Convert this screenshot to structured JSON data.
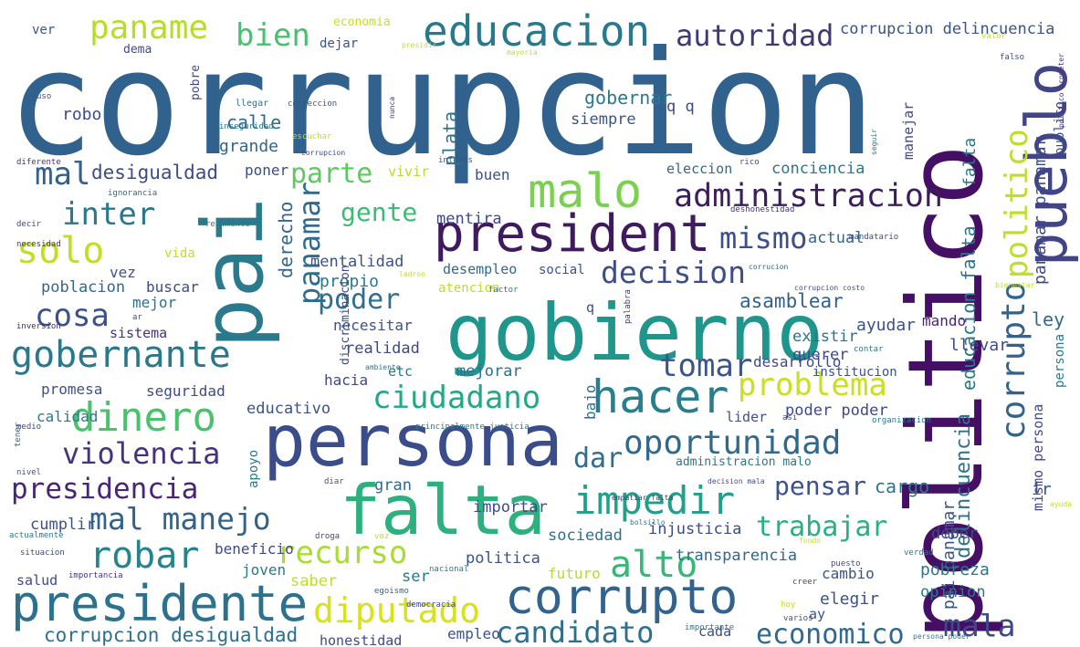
{
  "words": [
    {
      "text": "corrupcion",
      "color": "#31618d"
    },
    {
      "text": "politico",
      "color": "#440f64"
    },
    {
      "text": "gobierno",
      "color": "#1f958b"
    },
    {
      "text": "persona",
      "color": "#3b4c8a"
    },
    {
      "text": "president",
      "color": "#3f1a5f"
    },
    {
      "text": "falta",
      "color": "#2cb17e"
    },
    {
      "text": "pai",
      "color": "#2a7a8e"
    },
    {
      "text": "corrupto",
      "color": "#33638d"
    },
    {
      "text": "presidente",
      "color": "#2c718e"
    },
    {
      "text": "malo",
      "color": "#7ad151"
    },
    {
      "text": "hacer",
      "color": "#277f8e"
    },
    {
      "text": "pueblo",
      "color": "#414487"
    },
    {
      "text": "educacion",
      "color": "#29798e"
    },
    {
      "text": "autoridad",
      "color": "#3e3a75"
    },
    {
      "text": "paname",
      "color": "#b5de2b"
    },
    {
      "text": "bien",
      "color": "#48c16e"
    },
    {
      "text": "administracion",
      "color": "#3c1f5a"
    },
    {
      "text": "mismo",
      "color": "#3c4f8a"
    },
    {
      "text": "panamar",
      "color": "#2f6b8e"
    },
    {
      "text": "parte",
      "color": "#5ec962"
    },
    {
      "text": "gente",
      "color": "#3dbc74"
    },
    {
      "text": "mal",
      "color": "#34608d"
    },
    {
      "text": "desigualdad",
      "color": "#3e4c8a"
    },
    {
      "text": "inter",
      "color": "#2a788e"
    },
    {
      "text": "solo",
      "color": "#c2df23"
    },
    {
      "text": "cosa",
      "color": "#3b528b"
    },
    {
      "text": "gobernante",
      "color": "#2a788e"
    },
    {
      "text": "poder",
      "color": "#2e6e8e"
    },
    {
      "text": "decision",
      "color": "#3d4e8a"
    },
    {
      "text": "asamblear",
      "color": "#355f8d"
    },
    {
      "text": "tomar",
      "color": "#39568c"
    },
    {
      "text": "problema",
      "color": "#c8e020"
    },
    {
      "text": "ciudadano",
      "color": "#22a884"
    },
    {
      "text": "dinero",
      "color": "#4ac16d"
    },
    {
      "text": "violencia",
      "color": "#46327e"
    },
    {
      "text": "presidencia",
      "color": "#482677"
    },
    {
      "text": "mal manejo",
      "color": "#33638d"
    },
    {
      "text": "robar",
      "color": "#25838e"
    },
    {
      "text": "oportunidad",
      "color": "#31688e"
    },
    {
      "text": "dar",
      "color": "#2f6c8e"
    },
    {
      "text": "pensar",
      "color": "#3b528b"
    },
    {
      "text": "impedir",
      "color": "#1fa088"
    },
    {
      "text": "trabajar",
      "color": "#2ab07f"
    },
    {
      "text": "alto",
      "color": "#36b878"
    },
    {
      "text": "recurso",
      "color": "#a8db34"
    },
    {
      "text": "diputado",
      "color": "#d8e219"
    },
    {
      "text": "candidato",
      "color": "#2d708e"
    },
    {
      "text": "economico",
      "color": "#31688e"
    },
    {
      "text": "mala",
      "color": "#3e4989"
    },
    {
      "text": "corrupcion desigualdad",
      "color": "#2d708e"
    },
    {
      "text": "corrupto",
      "color": "#33638d"
    },
    {
      "text": "politico",
      "color": "#bddf26"
    },
    {
      "text": "educacion falta",
      "color": "#29798e"
    },
    {
      "text": "falta",
      "color": "#2a788e"
    },
    {
      "text": "panamar panamar",
      "color": "#3e4a89"
    },
    {
      "text": "delincuencia",
      "color": "#2c718e"
    },
    {
      "text": "pai panamar",
      "color": "#3b528b"
    },
    {
      "text": "mismo persona",
      "color": "#3e4a89"
    },
    {
      "text": "publico",
      "color": "#3b528b"
    },
    {
      "text": "ley",
      "color": "#31688e"
    },
    {
      "text": "ir",
      "color": "#3b528b"
    },
    {
      "text": "deber",
      "color": "#3e4a89"
    },
    {
      "text": "opinion",
      "color": "#29798e"
    },
    {
      "text": "pobreza",
      "color": "#2a788e"
    },
    {
      "text": "elegir",
      "color": "#3b528b"
    },
    {
      "text": "ay",
      "color": "#3b528b"
    },
    {
      "text": "cargo",
      "color": "#2a788e"
    },
    {
      "text": "llevar",
      "color": "#3e4a89"
    },
    {
      "text": "ayudar",
      "color": "#3b528b"
    },
    {
      "text": "existir",
      "color": "#2c718e"
    },
    {
      "text": "querer",
      "color": "#3e4a89"
    },
    {
      "text": "institucion",
      "color": "#3b528b"
    },
    {
      "text": "mando",
      "color": "#482677"
    },
    {
      "text": "actual",
      "color": "#31688e"
    },
    {
      "text": "eleccion",
      "color": "#31688e"
    },
    {
      "text": "conciencia",
      "color": "#2a788e"
    },
    {
      "text": "manejar",
      "color": "#3e4a89"
    },
    {
      "text": "calle",
      "color": "#31688e"
    },
    {
      "text": "grande",
      "color": "#33638d"
    },
    {
      "text": "robo",
      "color": "#3e4a89"
    },
    {
      "text": "gobernar",
      "color": "#2a788e"
    },
    {
      "text": "siempre",
      "color": "#3b528b"
    },
    {
      "text": "plata",
      "color": "#2c718e"
    },
    {
      "text": "q q",
      "color": "#3e4a89"
    },
    {
      "text": "buen",
      "color": "#3b528b"
    },
    {
      "text": "vivir",
      "color": "#b5de2b"
    },
    {
      "text": "poner",
      "color": "#3e4a89"
    },
    {
      "text": "derecho",
      "color": "#31688e"
    },
    {
      "text": "mentira",
      "color": "#3e4a89"
    },
    {
      "text": "mentalidad",
      "color": "#3b528b"
    },
    {
      "text": "propio",
      "color": "#2a788e"
    },
    {
      "text": "desempleo",
      "color": "#31688e"
    },
    {
      "text": "social",
      "color": "#3b528b"
    },
    {
      "text": "atencion",
      "color": "#bddf26"
    },
    {
      "text": "q",
      "color": "#3e4a89"
    },
    {
      "text": "discriminacion",
      "color": "#3e4a89"
    },
    {
      "text": "necesitar",
      "color": "#3b528b"
    },
    {
      "text": "realidad",
      "color": "#3e4a89"
    },
    {
      "text": "mejorar",
      "color": "#2c718e"
    },
    {
      "text": "etc",
      "color": "#2a788e"
    },
    {
      "text": "hacia",
      "color": "#3e4a89"
    },
    {
      "text": "bajo",
      "color": "#2c718e"
    },
    {
      "text": "educativo",
      "color": "#3b528b"
    },
    {
      "text": "apoyo",
      "color": "#2a788e"
    },
    {
      "text": "gran",
      "color": "#31688e"
    },
    {
      "text": "importar",
      "color": "#3e4a89"
    },
    {
      "text": "cumplir",
      "color": "#3b528b"
    },
    {
      "text": "beneficio",
      "color": "#3e4a89"
    },
    {
      "text": "joven",
      "color": "#2a788e"
    },
    {
      "text": "saber",
      "color": "#bddf26"
    },
    {
      "text": "ser",
      "color": "#2a788e"
    },
    {
      "text": "politica",
      "color": "#3b528b"
    },
    {
      "text": "futuro",
      "color": "#b5de2b"
    },
    {
      "text": "sociedad",
      "color": "#2c718e"
    },
    {
      "text": "injusticia",
      "color": "#3e4a89"
    },
    {
      "text": "transparencia",
      "color": "#31688e"
    },
    {
      "text": "cambio",
      "color": "#3b528b"
    },
    {
      "text": "salud",
      "color": "#3e4a89"
    },
    {
      "text": "honestidad",
      "color": "#3e4a89"
    },
    {
      "text": "empleo",
      "color": "#3b528b"
    },
    {
      "text": "cada",
      "color": "#3e4a89"
    },
    {
      "text": "lider",
      "color": "#3b528b"
    },
    {
      "text": "poder poder",
      "color": "#3e4a89"
    },
    {
      "text": "administracion malo",
      "color": "#2a788e"
    },
    {
      "text": "desarrollo",
      "color": "#3e4a89"
    },
    {
      "text": "mejor",
      "color": "#2c718e"
    },
    {
      "text": "sistema",
      "color": "#46327e"
    },
    {
      "text": "vez",
      "color": "#3b528b"
    },
    {
      "text": "vida",
      "color": "#c2df23"
    },
    {
      "text": "poblacion",
      "color": "#31688e"
    },
    {
      "text": "buscar",
      "color": "#3e4a89"
    },
    {
      "text": "promesa",
      "color": "#3b528b"
    },
    {
      "text": "seguridad",
      "color": "#3e4a89"
    },
    {
      "text": "calidad",
      "color": "#2a788e"
    },
    {
      "text": "ver",
      "color": "#3b528b"
    },
    {
      "text": "economia",
      "color": "#c8e020"
    },
    {
      "text": "dema",
      "color": "#3e4a89"
    },
    {
      "text": "dejar",
      "color": "#3b528b"
    },
    {
      "text": "pobre",
      "color": "#3e4a89"
    },
    {
      "text": "corrupcion delincuencia",
      "color": "#3b528b"
    },
    {
      "text": "llegar",
      "color": "#2c718e"
    },
    {
      "text": "correccion",
      "color": "#3b528b"
    },
    {
      "text": "inseguridad",
      "color": "#2a788e"
    },
    {
      "text": "nunca",
      "color": "#46327e"
    },
    {
      "text": "escuchar",
      "color": "#c2df23"
    },
    {
      "text": "corrupcion",
      "color": "#3e4a89"
    },
    {
      "text": "interes",
      "color": "#3b528b"
    },
    {
      "text": "diferente",
      "color": "#46327e"
    },
    {
      "text": "uso",
      "color": "#3b528b"
    },
    {
      "text": "ignorancia",
      "color": "#31688e"
    },
    {
      "text": "decir",
      "color": "#3e4a89"
    },
    {
      "text": "necesidad",
      "color": "#46327e"
    },
    {
      "text": "realmente",
      "color": "#2a788e"
    },
    {
      "text": "inversion",
      "color": "#482677"
    },
    {
      "text": "ar",
      "color": "#3b528b"
    },
    {
      "text": "ladron",
      "color": "#c2df23"
    },
    {
      "text": "factor",
      "color": "#2a788e"
    },
    {
      "text": "tener",
      "color": "#31688e"
    },
    {
      "text": "medio",
      "color": "#3e4a89"
    },
    {
      "text": "nivel",
      "color": "#3b528b"
    },
    {
      "text": "principalmente justicia",
      "color": "#2a788e"
    },
    {
      "text": "droga",
      "color": "#3e4a89"
    },
    {
      "text": "voz",
      "color": "#c2df23"
    },
    {
      "text": "egoismo",
      "color": "#31688e"
    },
    {
      "text": "democracia",
      "color": "#3e4a89"
    },
    {
      "text": "nacional",
      "color": "#2a788e"
    },
    {
      "text": "hoy",
      "color": "#c2df23"
    },
    {
      "text": "varios",
      "color": "#3b528b"
    },
    {
      "text": "importante",
      "color": "#2a788e"
    },
    {
      "text": "creer",
      "color": "#3e4a89"
    },
    {
      "text": "verdad",
      "color": "#2a788e"
    },
    {
      "text": "puesto",
      "color": "#3e4a89"
    },
    {
      "text": "fondo",
      "color": "#c2df23"
    },
    {
      "text": "actualmente",
      "color": "#2a788e"
    },
    {
      "text": "situacion",
      "color": "#3e4a89"
    },
    {
      "text": "importancia",
      "color": "#46327e"
    },
    {
      "text": "diar",
      "color": "#3b528b"
    },
    {
      "text": "empatiar falta",
      "color": "#46327e"
    },
    {
      "text": "decision mala",
      "color": "#3e4a89"
    },
    {
      "text": "bolsillo",
      "color": "#2a788e"
    },
    {
      "text": "deshonestidad",
      "color": "#46327e"
    },
    {
      "text": "mandatario",
      "color": "#3e4a89"
    },
    {
      "text": "rico",
      "color": "#3b528b"
    },
    {
      "text": "seguir",
      "color": "#2a788e"
    },
    {
      "text": "valor",
      "color": "#c2df23"
    },
    {
      "text": "falso",
      "color": "#3e4a89"
    },
    {
      "text": "mayoria",
      "color": "#c2df23"
    },
    {
      "text": "presidir",
      "color": "#c2df23"
    },
    {
      "text": "contar",
      "color": "#2a788e"
    },
    {
      "text": "palabra",
      "color": "#46327e"
    },
    {
      "text": "corrupcion costo",
      "color": "#3b528b"
    },
    {
      "text": "corrucion",
      "color": "#31688e"
    },
    {
      "text": "ambiente",
      "color": "#2a788e"
    },
    {
      "text": "politico prometer",
      "color": "#46327e"
    },
    {
      "text": "persona",
      "color": "#2a788e"
    },
    {
      "text": "organizacion",
      "color": "#2a788e"
    },
    {
      "text": "asi",
      "color": "#3e4a89"
    },
    {
      "text": "ayuda",
      "color": "#c2df23"
    },
    {
      "text": "persona poder",
      "color": "#2a788e"
    },
    {
      "text": "bienestar",
      "color": "#c2df23"
    }
  ]
}
